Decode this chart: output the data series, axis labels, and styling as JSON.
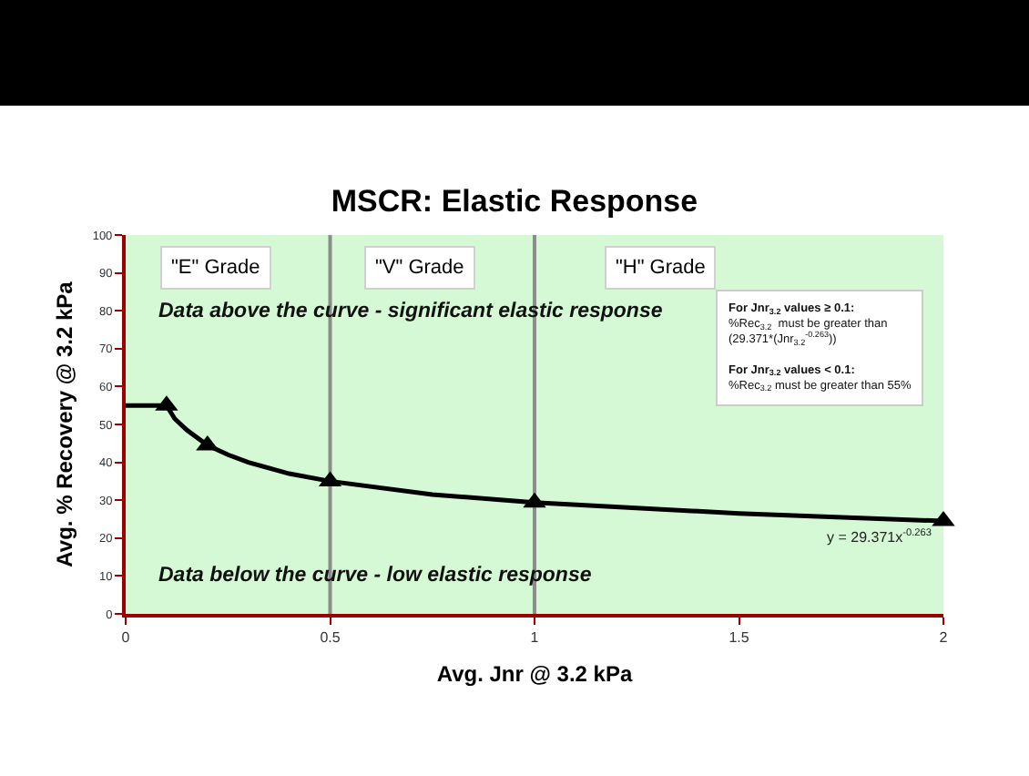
{
  "chart_data": {
    "type": "line",
    "title": "MSCR: Elastic Response",
    "xlabel": "Avg. Jnr @ 3.2 kPa",
    "ylabel": "Avg. % Recovery @ 3.2 kPa",
    "series": [
      {
        "color": "#000000",
        "marker": "none",
        "x": [
          0,
          0.1,
          0.12,
          0.15,
          0.2,
          0.25,
          0.3,
          0.4,
          0.5,
          0.75,
          1,
          1.5,
          2
        ],
        "values": [
          55,
          55,
          51.5,
          48.5,
          44.5,
          42,
          40,
          37,
          35,
          31.5,
          29.4,
          26.5,
          24.5
        ]
      },
      {
        "type": "scatter",
        "color": "#000000",
        "marker": "triangle",
        "x": [
          0.1,
          0.2,
          0.5,
          1,
          2
        ],
        "values": [
          55,
          44.5,
          35,
          29.4,
          24.5
        ]
      }
    ],
    "xlim": [
      0,
      2
    ],
    "xticks": [
      0,
      0.5,
      1,
      1.5,
      2
    ],
    "ylim": [
      0,
      100
    ],
    "yticks": [
      0,
      10,
      20,
      30,
      40,
      50,
      60,
      70,
      80,
      90,
      100
    ],
    "bands": [
      {
        "axis": "x",
        "from": 0,
        "to": 0.5,
        "label": "\"E\" Grade",
        "color": "#d5f9d5"
      },
      {
        "axis": "x",
        "from": 0.5,
        "to": 1,
        "label": "\"V\" Grade",
        "color": "#d5f9d5"
      },
      {
        "axis": "x",
        "from": 1,
        "to": 2,
        "label": "\"H\" Grade",
        "color": "#d5f9d5"
      }
    ],
    "ref_lines": [
      {
        "axis": "x",
        "value": 0.5,
        "color": "#8c8c8c"
      },
      {
        "axis": "x",
        "value": 1,
        "color": "#8c8c8c"
      }
    ],
    "annotations": [
      "Data above the curve - significant elastic response",
      "Data below the curve - low elastic response",
      "For Jnr$_{3.2}$ values ≥ 0.1:\n%Rec$_{3.2}$  must be greater than\n(29.371*(Jnr$_{3.2}$$^{-0.263}$))\n\nFor Jnr$_{3.2}$ values < 0.1:\n%Rec$_{3.2}$ must be greater than 55%",
      "y = 29.371x$^{-0.263}$"
    ],
    "grid": false
  }
}
